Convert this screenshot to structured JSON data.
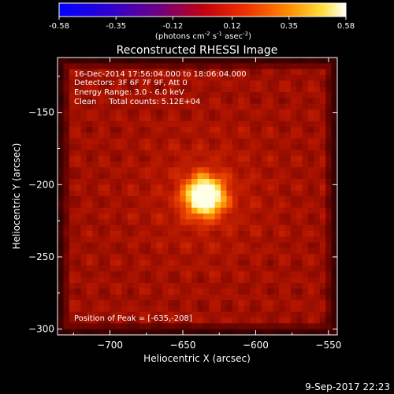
{
  "colorbar": {
    "ticks": [
      "-0.58",
      "-0.35",
      "-0.12",
      "0.12",
      "0.35",
      "0.58"
    ],
    "unit_label": "(photons cm-2 s-1 asec-2)",
    "unit_parts": [
      "(photons cm",
      "-2",
      " s",
      "-1",
      " asec",
      "-2",
      ")"
    ],
    "range": [
      -0.58,
      0.58
    ]
  },
  "title": "Reconstructed RHESSI Image",
  "info": {
    "time_range": "16-Dec-2014 17:56:04.000 to 18:06:04.000",
    "detectors": "Detectors: 3F 6F 7F 9F, Att 0",
    "energy": "Energy Range: 3.0 - 6.0 keV",
    "clean": "Clean     Total counts: 5.12E+04",
    "peak": "Position of Peak = [-635,-208]"
  },
  "timestamp": "9-Sep-2017 22:23",
  "chart_data": {
    "type": "heatmap",
    "title": "Reconstructed RHESSI Image",
    "xlabel": "Heliocentric X (arcsec)",
    "ylabel": "Heliocentric Y (arcsec)",
    "xlim": [
      -736,
      -544
    ],
    "ylim": [
      -304,
      -112
    ],
    "xticks": [
      -700,
      -650,
      -600,
      -550
    ],
    "yticks": [
      -300,
      -250,
      -200,
      -150
    ],
    "peak": {
      "x": -635,
      "y": -208
    },
    "value_range": [
      -0.58,
      0.58
    ],
    "colormap": [
      "#0000ff",
      "#5000c0",
      "#a00040",
      "#e01000",
      "#ff6000",
      "#ffd000",
      "#ffffff"
    ]
  }
}
